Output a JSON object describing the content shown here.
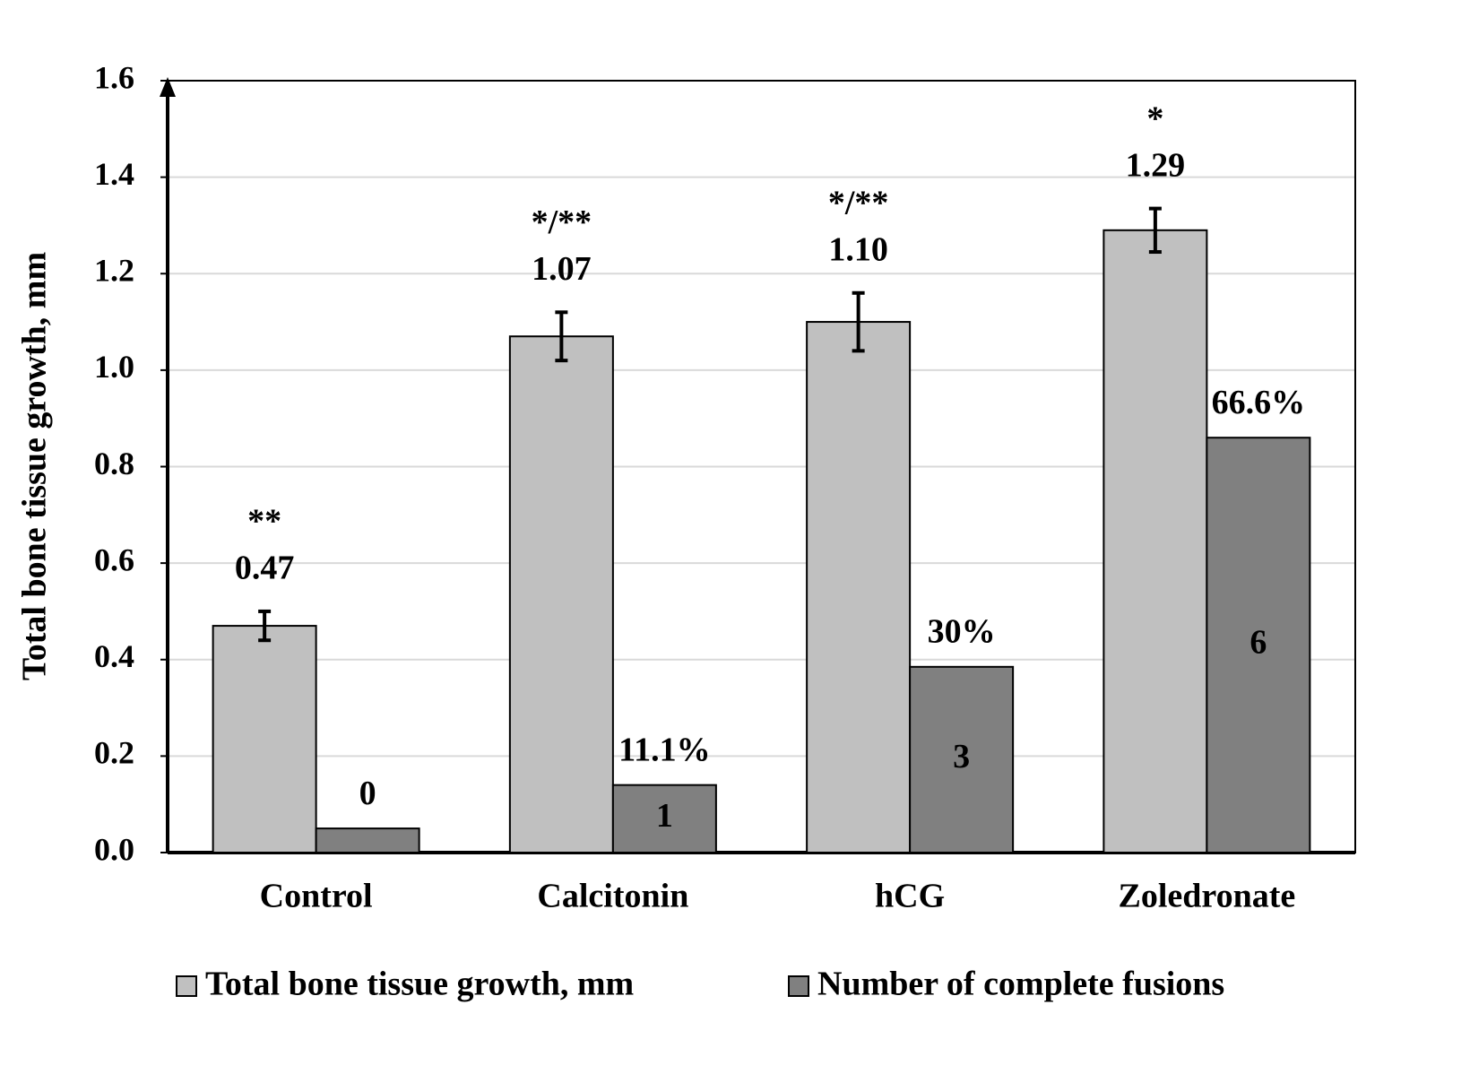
{
  "chart_data": {
    "type": "bar",
    "ylabel": "Total bone tissue growth, mm",
    "categories": [
      "Control",
      "Calcitonin",
      "hCG",
      "Zoledronate"
    ],
    "series": [
      {
        "name": "Total bone tissue growth, mm",
        "color": "#c0c0c0",
        "values": [
          0.47,
          1.07,
          1.1,
          1.29
        ],
        "value_labels": [
          "0.47",
          "1.07",
          "1.10",
          "1.29"
        ],
        "errors": [
          0.03,
          0.05,
          0.06,
          0.045
        ],
        "significance": [
          "**",
          "*/**",
          "*/**",
          "*"
        ]
      },
      {
        "name": "Number of complete fusions",
        "color": "#808080",
        "values": [
          0.05,
          0.14,
          0.385,
          0.86
        ],
        "top_labels": [
          "0",
          "11.1%",
          "30%",
          "66.6%"
        ],
        "inner_labels": [
          null,
          "1",
          "3",
          "6"
        ]
      }
    ],
    "ylim": [
      0,
      1.6
    ],
    "yticks": [
      {
        "value": 0,
        "label": "0.0"
      },
      0.2,
      0.4,
      0.6,
      0.8,
      {
        "value": 1,
        "label": "1.0"
      },
      1.2,
      1.4,
      1.6
    ],
    "grid": true,
    "legend": "bottom"
  }
}
